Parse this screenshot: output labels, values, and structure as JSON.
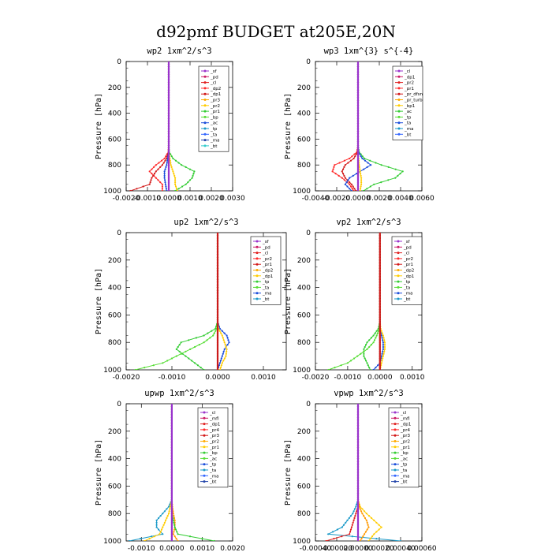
{
  "title": "d92pmf  BUDGET at205E,20N",
  "chart_data": [
    {
      "type": "line",
      "title": "wp2   1xm^2/s^3",
      "ylabel": "Pressure [hPa]",
      "xlim": [
        -0.002,
        0.003
      ],
      "ylim": [
        1000,
        0
      ],
      "xticks": [
        "-0.0020",
        "-0.0010",
        "0.0000",
        "0.0010",
        "0.0020",
        "0.0030"
      ],
      "xtick_values": [
        -0.002,
        -0.001,
        0,
        0.001,
        0.002,
        0.003
      ],
      "yticks": [
        "0",
        "200",
        "400",
        "600",
        "800",
        "1000"
      ],
      "pressure": [
        0,
        100,
        200,
        300,
        400,
        500,
        600,
        650,
        700,
        750,
        800,
        850,
        900,
        950,
        1000
      ],
      "legend": [
        "_sf",
        "_pd",
        "_cl",
        "_dp2",
        "_dp1",
        "_pr3",
        "_pr2",
        "_pr1",
        "_bp",
        "_ac",
        "_tp",
        "_ta",
        "_ma",
        "_bt"
      ],
      "series": [
        {
          "name": "_dp2",
          "color": "#ff2a2a",
          "values": [
            0,
            0,
            0,
            0,
            0,
            0,
            0,
            0,
            -2e-05,
            -0.0002,
            -0.0006,
            -0.0009,
            -0.0006,
            -0.0003,
            -0.0003
          ]
        },
        {
          "name": "_dp1",
          "color": "#d21818",
          "values": [
            0,
            0,
            0,
            0,
            0,
            0,
            0,
            0,
            -1e-05,
            -0.0001,
            -0.0003,
            -0.0006,
            -0.0008,
            -0.0009,
            -0.0018
          ]
        },
        {
          "name": "_pr1",
          "color": "#33cc33",
          "values": [
            0,
            0,
            0,
            0,
            0,
            0,
            0,
            0,
            2e-05,
            0.0002,
            0.0006,
            0.0012,
            0.0011,
            0.0008,
            0.0003
          ]
        },
        {
          "name": "_tp",
          "color": "#1a4ddb",
          "values": [
            0,
            0,
            0,
            0,
            0,
            0,
            0,
            0,
            0,
            -5e-05,
            -0.0001,
            -0.0002,
            -0.0002,
            -0.00015,
            -0.0001
          ]
        },
        {
          "name": "_pr2",
          "color": "#ffcc00",
          "values": [
            0,
            0,
            0,
            0,
            0,
            0,
            0,
            0,
            0,
            5e-05,
            0.0001,
            0.0002,
            0.0003,
            0.0003,
            0.0004
          ]
        },
        {
          "name": "_sf",
          "color": "#9933cc",
          "values": [
            0,
            0,
            0,
            0,
            0,
            0,
            0,
            0,
            0,
            0,
            0,
            0,
            0,
            0,
            0
          ]
        }
      ]
    },
    {
      "type": "line",
      "title": "wp3   1xm^{3} s^{-4}",
      "ylabel": "Pressure [hPa]",
      "xlim": [
        -0.004,
        0.006
      ],
      "ylim": [
        1000,
        0
      ],
      "xticks": [
        "-0.0040",
        "-0.0020",
        "0.0000",
        "0.0020",
        "0.0040",
        "0.0060"
      ],
      "xtick_values": [
        -0.004,
        -0.002,
        0,
        0.002,
        0.004,
        0.006
      ],
      "yticks": [
        "0",
        "200",
        "400",
        "600",
        "800",
        "1000"
      ],
      "pressure": [
        0,
        100,
        200,
        300,
        400,
        500,
        600,
        650,
        700,
        750,
        800,
        850,
        900,
        950,
        1000
      ],
      "legend": [
        "_cl",
        "_dp1",
        "_pr2",
        "_pr1",
        "_pr_dfsn",
        "_pr_turb",
        "_bp1",
        "_ac",
        "_tp",
        "_ta",
        "_ma",
        "_bt"
      ],
      "series": [
        {
          "name": "_pr1",
          "color": "#ff2a2a",
          "values": [
            0,
            0,
            0,
            0,
            0,
            0,
            0,
            0,
            -0.0001,
            -0.0008,
            -0.0022,
            -0.0024,
            -0.0015,
            -0.0008,
            -0.0004
          ]
        },
        {
          "name": "_dp1",
          "color": "#d21818",
          "values": [
            0,
            0,
            0,
            0,
            0,
            0,
            0,
            0,
            -5e-05,
            -0.0004,
            -0.0012,
            -0.0015,
            -0.0012,
            -0.0006,
            -0.0002
          ]
        },
        {
          "name": "_bp1",
          "color": "#33cc33",
          "values": [
            0,
            0,
            0,
            0,
            0,
            0,
            0,
            0,
            0.0001,
            0.0006,
            0.0022,
            0.0042,
            0.0035,
            0.0015,
            0.0005
          ]
        },
        {
          "name": "_tp",
          "color": "#1a4ddb",
          "values": [
            0,
            0,
            0,
            0,
            0,
            0,
            0,
            0,
            5e-05,
            0.0004,
            0.0012,
            0.0002,
            -0.0008,
            -0.0012,
            -0.0006
          ]
        },
        {
          "name": "_pr2",
          "color": "#ffcc00",
          "values": [
            0,
            0,
            0,
            0,
            0,
            0,
            0,
            0,
            0,
            5e-05,
            0.0001,
            0.0002,
            0.0003,
            0.0003,
            0.0002
          ]
        },
        {
          "name": "_cl",
          "color": "#9933cc",
          "values": [
            0,
            0,
            0,
            0,
            0,
            0,
            0,
            0,
            0,
            0,
            0,
            0,
            0,
            0,
            0
          ]
        }
      ]
    },
    {
      "type": "line",
      "title": "up2   1xm^2/s^3",
      "ylabel": "Pressure [hPa]",
      "xlim": [
        -0.002,
        0.0015
      ],
      "ylim": [
        1000,
        0
      ],
      "xticks": [
        "-0.0020",
        "-0.0010",
        "0.0000",
        "0.0010"
      ],
      "xtick_values": [
        -0.002,
        -0.001,
        0,
        0.001
      ],
      "yticks": [
        "0",
        "200",
        "400",
        "600",
        "800",
        "1000"
      ],
      "pressure": [
        0,
        100,
        200,
        300,
        400,
        500,
        600,
        650,
        700,
        750,
        800,
        850,
        900,
        950,
        1000
      ],
      "legend": [
        "_sf",
        "_pd",
        "_cl",
        "_pr2",
        "_pr1",
        "_dp2",
        "_dp1",
        "_tp",
        "_ta",
        "_ma",
        "_bt"
      ],
      "series": [
        {
          "name": "_dp2",
          "color": "#33cc33",
          "values": [
            0,
            0,
            0,
            0,
            0,
            0,
            0,
            0,
            -5e-05,
            -0.0003,
            -0.0008,
            -0.0009,
            -0.0007,
            -0.0005,
            -0.0003
          ]
        },
        {
          "name": "_dp1",
          "color": "#55dd33",
          "values": [
            0,
            0,
            0,
            0,
            0,
            0,
            0,
            0,
            -2e-05,
            -0.0001,
            -0.0003,
            -0.0006,
            -0.0009,
            -0.0012,
            -0.0018
          ]
        },
        {
          "name": "_tp",
          "color": "#1a4ddb",
          "values": [
            0,
            0,
            0,
            0,
            0,
            0,
            0,
            0,
            5e-05,
            0.0002,
            0.00025,
            0.00015,
            0.0001,
            5e-05,
            0
          ]
        },
        {
          "name": "_pr2",
          "color": "#ffcc00",
          "values": [
            0,
            0,
            0,
            0,
            0,
            0,
            0,
            0,
            2e-05,
            0.0001,
            0.00015,
            0.0002,
            0.00018,
            0.0001,
            5e-05
          ]
        },
        {
          "name": "_sf",
          "color": "#cc1a1a",
          "values": [
            0,
            0,
            0,
            0,
            0,
            0,
            0,
            0,
            0,
            0,
            0,
            0,
            0,
            0,
            0
          ]
        }
      ]
    },
    {
      "type": "line",
      "title": "vp2   1xm^2/s^3",
      "ylabel": "Pressure [hPa]",
      "xlim": [
        -0.002,
        0.0013
      ],
      "ylim": [
        1000,
        0
      ],
      "xticks": [
        "-0.0020",
        "-0.0010",
        "0.0000",
        "0.0010"
      ],
      "xtick_values": [
        -0.002,
        -0.001,
        0,
        0.001
      ],
      "yticks": [
        "0",
        "200",
        "400",
        "600",
        "800",
        "1000"
      ],
      "pressure": [
        0,
        100,
        200,
        300,
        400,
        500,
        600,
        650,
        700,
        750,
        800,
        850,
        900,
        950,
        1000
      ],
      "legend": [
        "_sf",
        "_pd",
        "_cl",
        "_pr2",
        "_pr1",
        "_dp2",
        "_dp1",
        "_tp",
        "_ta",
        "_ma",
        "_bt"
      ],
      "series": [
        {
          "name": "_dp2",
          "color": "#33cc33",
          "values": [
            0,
            0,
            0,
            0,
            0,
            0,
            0,
            0,
            -5e-05,
            -0.0002,
            -0.0004,
            -0.0005,
            -0.0005,
            -0.0004,
            -0.0003
          ]
        },
        {
          "name": "_dp1",
          "color": "#55dd33",
          "values": [
            0,
            0,
            0,
            0,
            0,
            0,
            0,
            0,
            -2e-05,
            -0.0001,
            -0.0002,
            -0.0004,
            -0.0007,
            -0.001,
            -0.0016
          ]
        },
        {
          "name": "_tp",
          "color": "#1a4ddb",
          "values": [
            0,
            0,
            0,
            0,
            0,
            0,
            0,
            0,
            0,
            5e-05,
            0.0001,
            0.0001,
            5e-05,
            0,
            -0.0002
          ]
        },
        {
          "name": "_pr2",
          "color": "#ffcc00",
          "values": [
            0,
            0,
            0,
            0,
            0,
            0,
            0,
            0,
            2e-05,
            0.0001,
            0.00015,
            0.00015,
            0.0001,
            5e-05,
            0
          ]
        },
        {
          "name": "_sf",
          "color": "#cc1a1a",
          "values": [
            0,
            0,
            0,
            0,
            0,
            0,
            0,
            0,
            0,
            0,
            0,
            0,
            0,
            0,
            0
          ]
        }
      ]
    },
    {
      "type": "line",
      "title": "upwp   1xm^2/s^3",
      "ylabel": "Pressure [hPa]",
      "xlim": [
        -0.0015,
        0.002
      ],
      "ylim": [
        1000,
        0
      ],
      "xticks": [
        "-0.0010",
        "0.0000",
        "0.0010",
        "0.0020"
      ],
      "xtick_values": [
        -0.001,
        0,
        0.001,
        0.002
      ],
      "yticks": [
        "0",
        "200",
        "400",
        "600",
        "800",
        "1000"
      ],
      "pressure": [
        0,
        100,
        200,
        300,
        400,
        500,
        600,
        650,
        700,
        750,
        800,
        850,
        900,
        950,
        1000
      ],
      "legend": [
        "_cl",
        "_mfl",
        "_dp1",
        "_pr4",
        "_pr3",
        "_pr2",
        "_pr1",
        "_bp",
        "_ac",
        "_tp",
        "_ta",
        "_ma",
        "_bt"
      ],
      "series": [
        {
          "name": "_tp",
          "color": "#1a99c8",
          "values": [
            0,
            0,
            0,
            0,
            0,
            0,
            0,
            0,
            0,
            -0.0001,
            -0.0003,
            -0.0005,
            -0.0005,
            -0.0003,
            -0.0014
          ]
        },
        {
          "name": "_pr2",
          "color": "#ffcc00",
          "values": [
            0,
            0,
            0,
            0,
            0,
            0,
            0,
            0,
            0,
            -5e-05,
            -0.0001,
            -0.0002,
            -0.0003,
            -0.0004,
            -0.0009
          ]
        },
        {
          "name": "_pr1",
          "color": "#ff9900",
          "values": [
            0,
            0,
            0,
            0,
            0,
            0,
            0,
            0,
            0,
            2e-05,
            5e-05,
            0.0001,
            0.0001,
            5e-05,
            0.0002
          ]
        },
        {
          "name": "_ac",
          "color": "#33cc33",
          "values": [
            0,
            0,
            0,
            0,
            0,
            0,
            0,
            0,
            0,
            0,
            0,
            5e-05,
            0.0001,
            0.0002,
            0.0014
          ]
        },
        {
          "name": "_cl",
          "color": "#9933cc",
          "values": [
            0,
            0,
            0,
            0,
            0,
            0,
            0,
            0,
            0,
            0,
            0,
            0,
            0,
            0,
            0
          ]
        }
      ]
    },
    {
      "type": "line",
      "title": "vpwp   1xm^2/s^3",
      "ylabel": "Pressure [hPa]",
      "xlim": [
        -0.0004,
        0.0006
      ],
      "ylim": [
        1000,
        0
      ],
      "xticks": [
        "-0.00040",
        "-0.00020",
        "0.00000",
        "0.00020",
        "0.00040",
        "0.00060"
      ],
      "xtick_values": [
        -0.0004,
        -0.0002,
        0,
        0.0002,
        0.0004,
        0.0006
      ],
      "yticks": [
        "0",
        "200",
        "400",
        "600",
        "800",
        "1000"
      ],
      "pressure": [
        0,
        100,
        200,
        300,
        400,
        500,
        600,
        650,
        700,
        750,
        800,
        850,
        900,
        950,
        1000
      ],
      "legend": [
        "_cl",
        "_mfl",
        "_dp1",
        "_pr4",
        "_pr3",
        "_pr2",
        "_pr1",
        "_bp",
        "_ac",
        "_tp",
        "_ta",
        "_ma",
        "_bt"
      ],
      "series": [
        {
          "name": "_tp",
          "color": "#1a99c8",
          "values": [
            0,
            0,
            0,
            0,
            0,
            0,
            0,
            0,
            0,
            -2e-05,
            -5e-05,
            -0.0001,
            -0.00015,
            -0.00028,
            0.0004
          ]
        },
        {
          "name": "_pr2",
          "color": "#ffcc00",
          "values": [
            0,
            0,
            0,
            0,
            0,
            0,
            0,
            0,
            0,
            2e-05,
            8e-05,
            0.00015,
            0.00022,
            0.00015,
            0.0001
          ]
        },
        {
          "name": "_pr1",
          "color": "#ff9900",
          "values": [
            0,
            0,
            0,
            0,
            0,
            0,
            0,
            0,
            0,
            1e-05,
            4e-05,
            8e-05,
            0.0001,
            6e-05,
            2e-05
          ]
        },
        {
          "name": "_dp1",
          "color": "#e02020",
          "values": [
            0,
            0,
            0,
            0,
            0,
            0,
            0,
            0,
            0,
            0,
            -2e-05,
            -4e-05,
            -6e-05,
            -8e-05,
            -0.0003
          ]
        },
        {
          "name": "_cl",
          "color": "#9933cc",
          "values": [
            0,
            0,
            0,
            0,
            0,
            0,
            0,
            0,
            0,
            0,
            0,
            0,
            0,
            0,
            0
          ]
        }
      ]
    }
  ]
}
